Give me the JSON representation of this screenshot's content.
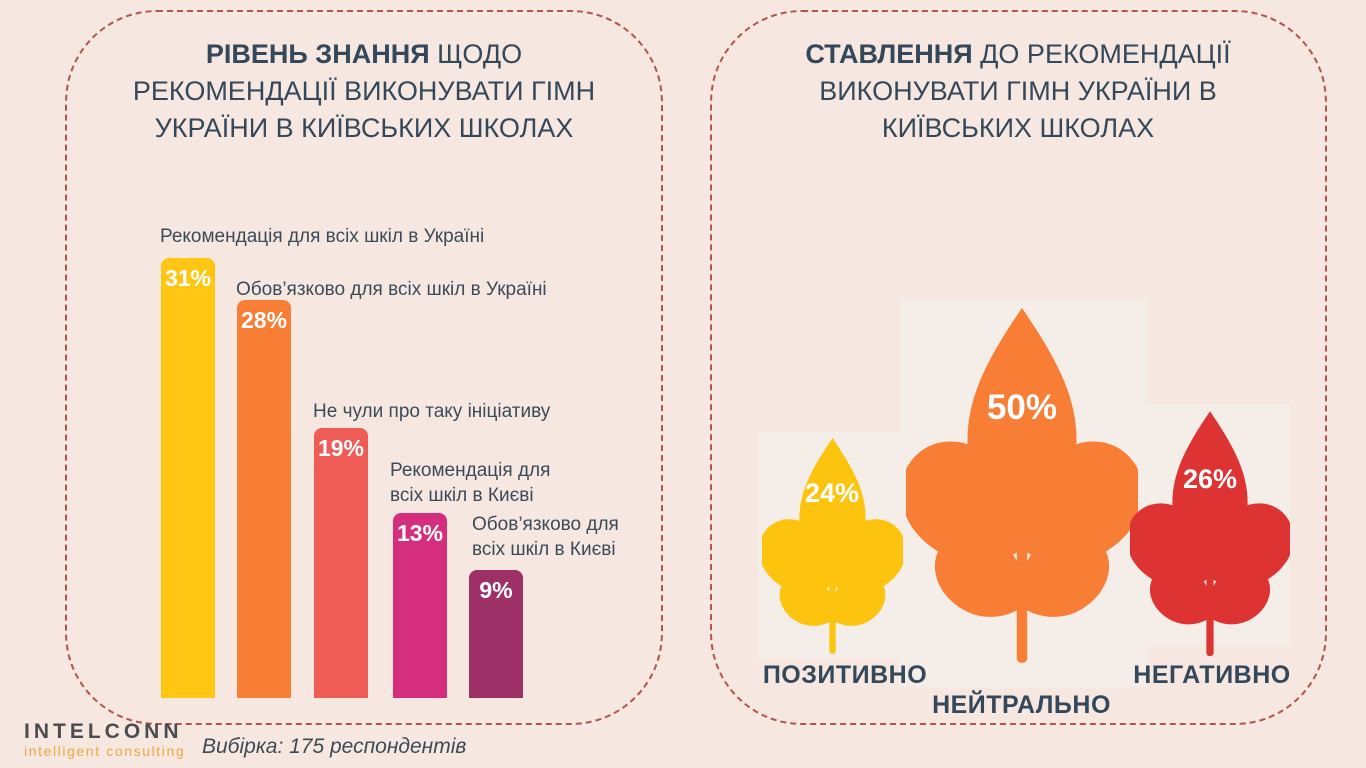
{
  "page": {
    "background_color": "#f6e8e1",
    "border_color": "#b3544e",
    "title_color": "#33485a"
  },
  "left_panel": {
    "title_bold": "РІВЕНЬ ЗНАННЯ",
    "title_rest": " ЩОДО РЕКОМЕНДАЦІЇ ВИКОНУВАТИ ГІМН УКРАЇНИ В КИЇВСЬКИХ ШКОЛАХ",
    "bars": [
      {
        "label": "Рекомендація для всіх шкіл в Україні",
        "pct": "31%",
        "value": 31,
        "color": "#ffc613"
      },
      {
        "label": "Обов’язково для всіх шкіл в Україні",
        "pct": "28%",
        "value": 28,
        "color": "#f87d35"
      },
      {
        "label": "Не чули про таку ініціативу",
        "pct": "19%",
        "value": 19,
        "color": "#ee5c55"
      },
      {
        "label": "Рекомендація для\nвсіх шкіл в Києві",
        "pct": "13%",
        "value": 13,
        "color": "#d52e7d"
      },
      {
        "label": "Обов’язково для\nвсіх шкіл в Києві",
        "pct": "9%",
        "value": 9,
        "color": "#9d3167"
      }
    ]
  },
  "right_panel": {
    "title_bold": "СТАВЛЕННЯ",
    "title_rest": " ДО РЕКОМЕНДАЦІЇ ВИКОНУВАТИ ГІМН УКРАЇНИ В КИЇВСЬКИХ ШКОЛАХ",
    "plants": [
      {
        "label": "ПОЗИТИВНО",
        "pct": "24%",
        "value": 24,
        "color": "#fdc40f"
      },
      {
        "label": "НЕЙТРАЛЬНО",
        "pct": "50%",
        "value": 50,
        "color": "#f87d35"
      },
      {
        "label": "НЕГАТИВНО",
        "pct": "26%",
        "value": 26,
        "color": "#dd3333"
      }
    ]
  },
  "footer": {
    "logo_line1": "INTELCONN",
    "logo_line2": "intelligent consulting",
    "sample_note": "Вибірка: 175 респондентів"
  },
  "chart_data": [
    {
      "type": "bar",
      "title": "РІВЕНЬ ЗНАННЯ ЩОДО РЕКОМЕНДАЦІЇ ВИКОНУВАТИ ГІМН УКРАЇНИ В КИЇВСЬКИХ ШКОЛАХ",
      "categories": [
        "Рекомендація для всіх шкіл в Україні",
        "Обов’язково для всіх шкіл в Україні",
        "Не чули про таку ініціативу",
        "Рекомендація для всіх шкіл в Києві",
        "Обов’язково для всіх шкіл в Києві"
      ],
      "values": [
        31,
        28,
        19,
        13,
        9
      ],
      "unit": "%",
      "colors": [
        "#ffc613",
        "#f87d35",
        "#ee5c55",
        "#d52e7d",
        "#9d3167"
      ],
      "xlabel": "",
      "ylabel": "",
      "ylim": [
        0,
        31
      ],
      "grid": false,
      "legend": "none",
      "note": "Вибірка: 175 респондентів"
    },
    {
      "type": "pictogram",
      "title": "СТАВЛЕННЯ ДО РЕКОМЕНДАЦІЇ ВИКОНУВАТИ ГІМН УКРАЇНИ В КИЇВСЬКИХ ШКОЛАХ",
      "categories": [
        "ПОЗИТИВНО",
        "НЕЙТРАЛЬНО",
        "НЕГАТИВНО"
      ],
      "values": [
        24,
        50,
        26
      ],
      "unit": "%",
      "colors": [
        "#fdc40f",
        "#f87d35",
        "#dd3333"
      ],
      "symbol": "plant-with-leaves, size proportional to value",
      "grid": false,
      "legend": "none"
    }
  ]
}
